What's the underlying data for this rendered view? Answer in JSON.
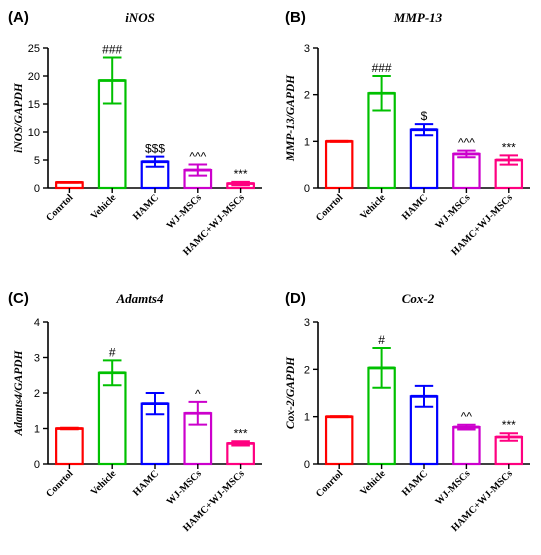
{
  "chart_data": [
    {
      "panel": "(A)",
      "type": "bar",
      "title": "iNOS",
      "ylabel": "iNOS/GAPDH",
      "ylim": [
        0,
        25
      ],
      "yticks": [
        "0",
        "5",
        "10",
        "15",
        "20",
        "25"
      ],
      "categories": [
        "Conrtol",
        "Vehicle",
        "HAMC",
        "WJ-MSCs",
        "HAMC+WJ-MSCs"
      ],
      "colors": [
        "#ff0000",
        "#00c000",
        "#0000ff",
        "#cc00cc",
        "#ff0080"
      ],
      "values": [
        1.0,
        19.2,
        4.7,
        3.2,
        0.8
      ],
      "errors": [
        0.05,
        4.1,
        0.9,
        1.0,
        0.3
      ],
      "annotations": [
        "",
        "###",
        "$$$",
        "^^^",
        "***"
      ]
    },
    {
      "panel": "(B)",
      "type": "bar",
      "title": "MMP-13",
      "ylabel": "MMP-13/GAPDH",
      "ylim": [
        0,
        3
      ],
      "yticks": [
        "0",
        "1",
        "2",
        "3"
      ],
      "categories": [
        "Conrtol",
        "Vehicle",
        "HAMC",
        "WJ-MSCs",
        "HAMC+WJ-MSCs"
      ],
      "colors": [
        "#ff0000",
        "#00c000",
        "#0000ff",
        "#cc00cc",
        "#ff0080"
      ],
      "values": [
        1.0,
        2.03,
        1.25,
        0.73,
        0.6
      ],
      "errors": [
        0.01,
        0.37,
        0.12,
        0.07,
        0.1
      ],
      "annotations": [
        "",
        "###",
        "$",
        "^^^",
        "***"
      ]
    },
    {
      "panel": "(C)",
      "type": "bar",
      "title": "Adamts4",
      "ylabel": "Adamts4/GAPDH",
      "ylim": [
        0,
        4
      ],
      "yticks": [
        "0",
        "1",
        "2",
        "3",
        "4"
      ],
      "categories": [
        "Conrtol",
        "Vehicle",
        "HAMC",
        "WJ-MSCs",
        "HAMC+WJ-MSCs"
      ],
      "colors": [
        "#ff0000",
        "#00c000",
        "#0000ff",
        "#cc00cc",
        "#ff0080"
      ],
      "values": [
        1.0,
        2.57,
        1.7,
        1.43,
        0.58
      ],
      "errors": [
        0.02,
        0.35,
        0.3,
        0.32,
        0.06
      ],
      "annotations": [
        "",
        "#",
        "",
        "^",
        "***"
      ]
    },
    {
      "panel": "(D)",
      "type": "bar",
      "title": "Cox-2",
      "ylabel": "Cox-2/GAPDH",
      "ylim": [
        0,
        3
      ],
      "yticks": [
        "0",
        "1",
        "2",
        "3"
      ],
      "categories": [
        "Conrtol",
        "Vehicle",
        "HAMC",
        "WJ-MSCs",
        "HAMC+WJ-MSCs"
      ],
      "colors": [
        "#ff0000",
        "#00c000",
        "#0000ff",
        "#cc00cc",
        "#ff0080"
      ],
      "values": [
        1.0,
        2.03,
        1.43,
        0.78,
        0.57
      ],
      "errors": [
        0.01,
        0.42,
        0.22,
        0.05,
        0.08
      ],
      "annotations": [
        "",
        "#",
        "",
        "^^",
        "***"
      ]
    }
  ]
}
